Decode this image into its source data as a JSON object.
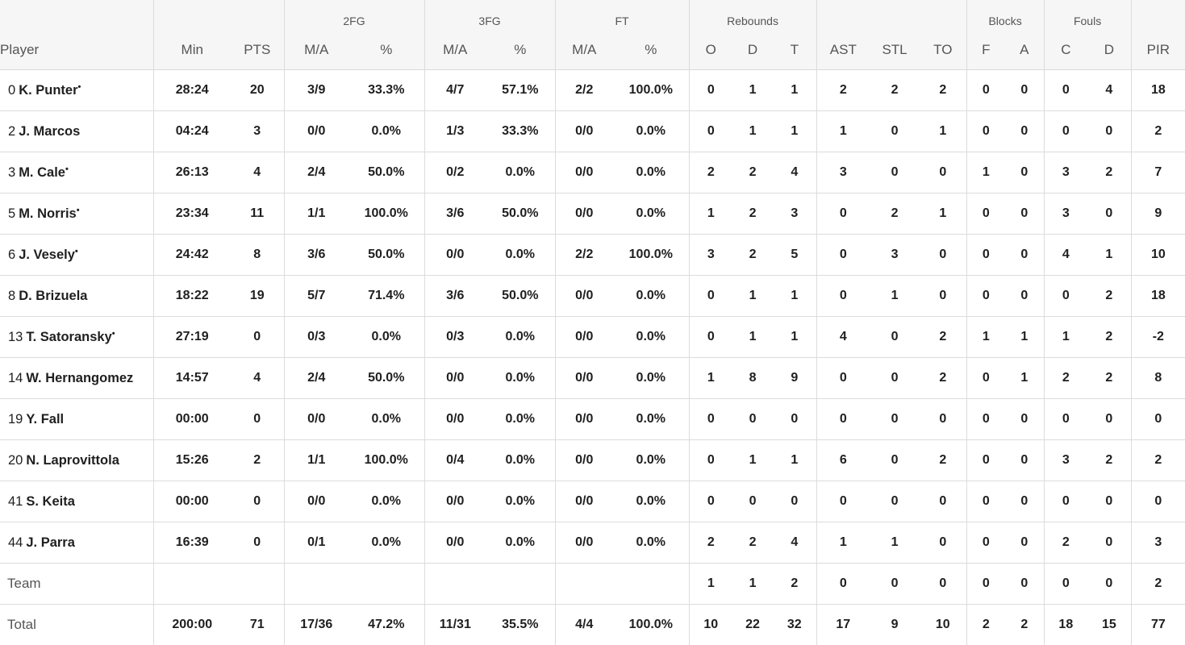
{
  "headers": {
    "groups": {
      "fg2": "2FG",
      "fg3": "3FG",
      "ft": "FT",
      "rebounds": "Rebounds",
      "blocks": "Blocks",
      "fouls": "Fouls"
    },
    "columns": [
      "Player",
      "Min",
      "PTS",
      "M/A",
      "%",
      "M/A",
      "%",
      "M/A",
      "%",
      "O",
      "D",
      "T",
      "AST",
      "STL",
      "TO",
      "F",
      "A",
      "C",
      "D",
      "PIR"
    ]
  },
  "starter_mark": "•",
  "players": [
    {
      "number": "0",
      "name": "K. Punter",
      "starter": true,
      "stats": [
        "28:24",
        "20",
        "3/9",
        "33.3%",
        "4/7",
        "57.1%",
        "2/2",
        "100.0%",
        "0",
        "1",
        "1",
        "2",
        "2",
        "2",
        "0",
        "0",
        "0",
        "4",
        "18"
      ]
    },
    {
      "number": "2",
      "name": "J. Marcos",
      "starter": false,
      "stats": [
        "04:24",
        "3",
        "0/0",
        "0.0%",
        "1/3",
        "33.3%",
        "0/0",
        "0.0%",
        "0",
        "1",
        "1",
        "1",
        "0",
        "1",
        "0",
        "0",
        "0",
        "0",
        "2"
      ]
    },
    {
      "number": "3",
      "name": "M. Cale",
      "starter": true,
      "stats": [
        "26:13",
        "4",
        "2/4",
        "50.0%",
        "0/2",
        "0.0%",
        "0/0",
        "0.0%",
        "2",
        "2",
        "4",
        "3",
        "0",
        "0",
        "1",
        "0",
        "3",
        "2",
        "7"
      ]
    },
    {
      "number": "5",
      "name": "M. Norris",
      "starter": true,
      "stats": [
        "23:34",
        "11",
        "1/1",
        "100.0%",
        "3/6",
        "50.0%",
        "0/0",
        "0.0%",
        "1",
        "2",
        "3",
        "0",
        "2",
        "1",
        "0",
        "0",
        "3",
        "0",
        "9"
      ]
    },
    {
      "number": "6",
      "name": "J. Vesely",
      "starter": true,
      "stats": [
        "24:42",
        "8",
        "3/6",
        "50.0%",
        "0/0",
        "0.0%",
        "2/2",
        "100.0%",
        "3",
        "2",
        "5",
        "0",
        "3",
        "0",
        "0",
        "0",
        "4",
        "1",
        "10"
      ]
    },
    {
      "number": "8",
      "name": "D. Brizuela",
      "starter": false,
      "stats": [
        "18:22",
        "19",
        "5/7",
        "71.4%",
        "3/6",
        "50.0%",
        "0/0",
        "0.0%",
        "0",
        "1",
        "1",
        "0",
        "1",
        "0",
        "0",
        "0",
        "0",
        "2",
        "18"
      ]
    },
    {
      "number": "13",
      "name": "T. Satoransky",
      "starter": true,
      "stats": [
        "27:19",
        "0",
        "0/3",
        "0.0%",
        "0/3",
        "0.0%",
        "0/0",
        "0.0%",
        "0",
        "1",
        "1",
        "4",
        "0",
        "2",
        "1",
        "1",
        "1",
        "2",
        "-2"
      ]
    },
    {
      "number": "14",
      "name": "W. Hernangomez",
      "starter": false,
      "stats": [
        "14:57",
        "4",
        "2/4",
        "50.0%",
        "0/0",
        "0.0%",
        "0/0",
        "0.0%",
        "1",
        "8",
        "9",
        "0",
        "0",
        "2",
        "0",
        "1",
        "2",
        "2",
        "8"
      ]
    },
    {
      "number": "19",
      "name": "Y. Fall",
      "starter": false,
      "stats": [
        "00:00",
        "0",
        "0/0",
        "0.0%",
        "0/0",
        "0.0%",
        "0/0",
        "0.0%",
        "0",
        "0",
        "0",
        "0",
        "0",
        "0",
        "0",
        "0",
        "0",
        "0",
        "0"
      ]
    },
    {
      "number": "20",
      "name": "N. Laprovittola",
      "starter": false,
      "stats": [
        "15:26",
        "2",
        "1/1",
        "100.0%",
        "0/4",
        "0.0%",
        "0/0",
        "0.0%",
        "0",
        "1",
        "1",
        "6",
        "0",
        "2",
        "0",
        "0",
        "3",
        "2",
        "2"
      ]
    },
    {
      "number": "41",
      "name": "S. Keita",
      "starter": false,
      "stats": [
        "00:00",
        "0",
        "0/0",
        "0.0%",
        "0/0",
        "0.0%",
        "0/0",
        "0.0%",
        "0",
        "0",
        "0",
        "0",
        "0",
        "0",
        "0",
        "0",
        "0",
        "0",
        "0"
      ]
    },
    {
      "number": "44",
      "name": "J. Parra",
      "starter": false,
      "stats": [
        "16:39",
        "0",
        "0/1",
        "0.0%",
        "0/0",
        "0.0%",
        "0/0",
        "0.0%",
        "2",
        "2",
        "4",
        "1",
        "1",
        "0",
        "0",
        "0",
        "2",
        "0",
        "3"
      ]
    }
  ],
  "team": {
    "label": "Team",
    "stats": [
      "",
      "",
      "",
      "",
      "",
      "",
      "",
      "",
      "1",
      "1",
      "2",
      "0",
      "0",
      "0",
      "0",
      "0",
      "0",
      "0",
      "2"
    ]
  },
  "total": {
    "label": "Total",
    "stats": [
      "200:00",
      "71",
      "17/36",
      "47.2%",
      "11/31",
      "35.5%",
      "4/4",
      "100.0%",
      "10",
      "22",
      "32",
      "17",
      "9",
      "10",
      "2",
      "2",
      "18",
      "15",
      "77"
    ]
  }
}
